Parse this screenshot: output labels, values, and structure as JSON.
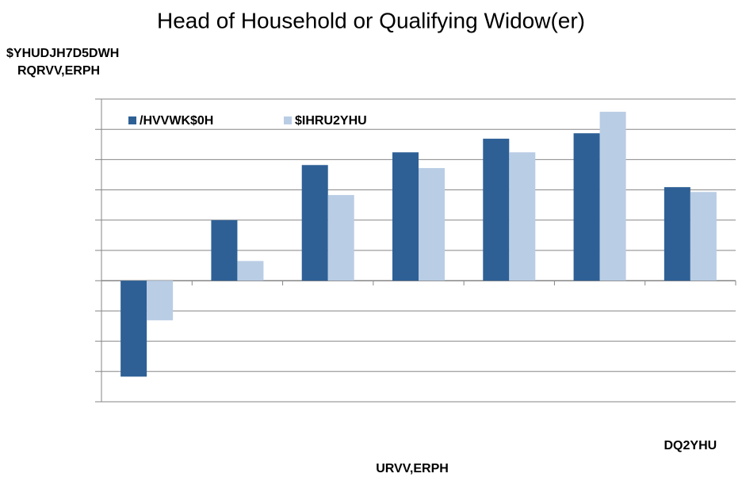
{
  "chart_data": {
    "type": "bar",
    "title": "Head of Household or Qualifying Widow(er)",
    "y_label_lines": [
      "$YHUDJH7D5DWH",
      "RQRVV,ERPH"
    ],
    "x_label": "URVV,ERPH",
    "categories": [
      null,
      null,
      null,
      null,
      null,
      null,
      "DQ2YHU"
    ],
    "series": [
      {
        "name": "/HVVWK$0H",
        "color": "#2e6096",
        "values": [
          -3.17,
          2.0,
          3.82,
          4.24,
          4.69,
          4.87,
          3.09
        ]
      },
      {
        "name": "$IHRU2YHU",
        "color": "#b9cde5",
        "values": [
          -1.31,
          0.65,
          2.83,
          3.72,
          4.24,
          5.58,
          2.93
        ]
      }
    ],
    "ylim": [
      -4,
      6
    ],
    "yticks": [
      -4,
      -3,
      -2,
      -1,
      0,
      1,
      2,
      3,
      4,
      5,
      6
    ],
    "grid": true
  }
}
